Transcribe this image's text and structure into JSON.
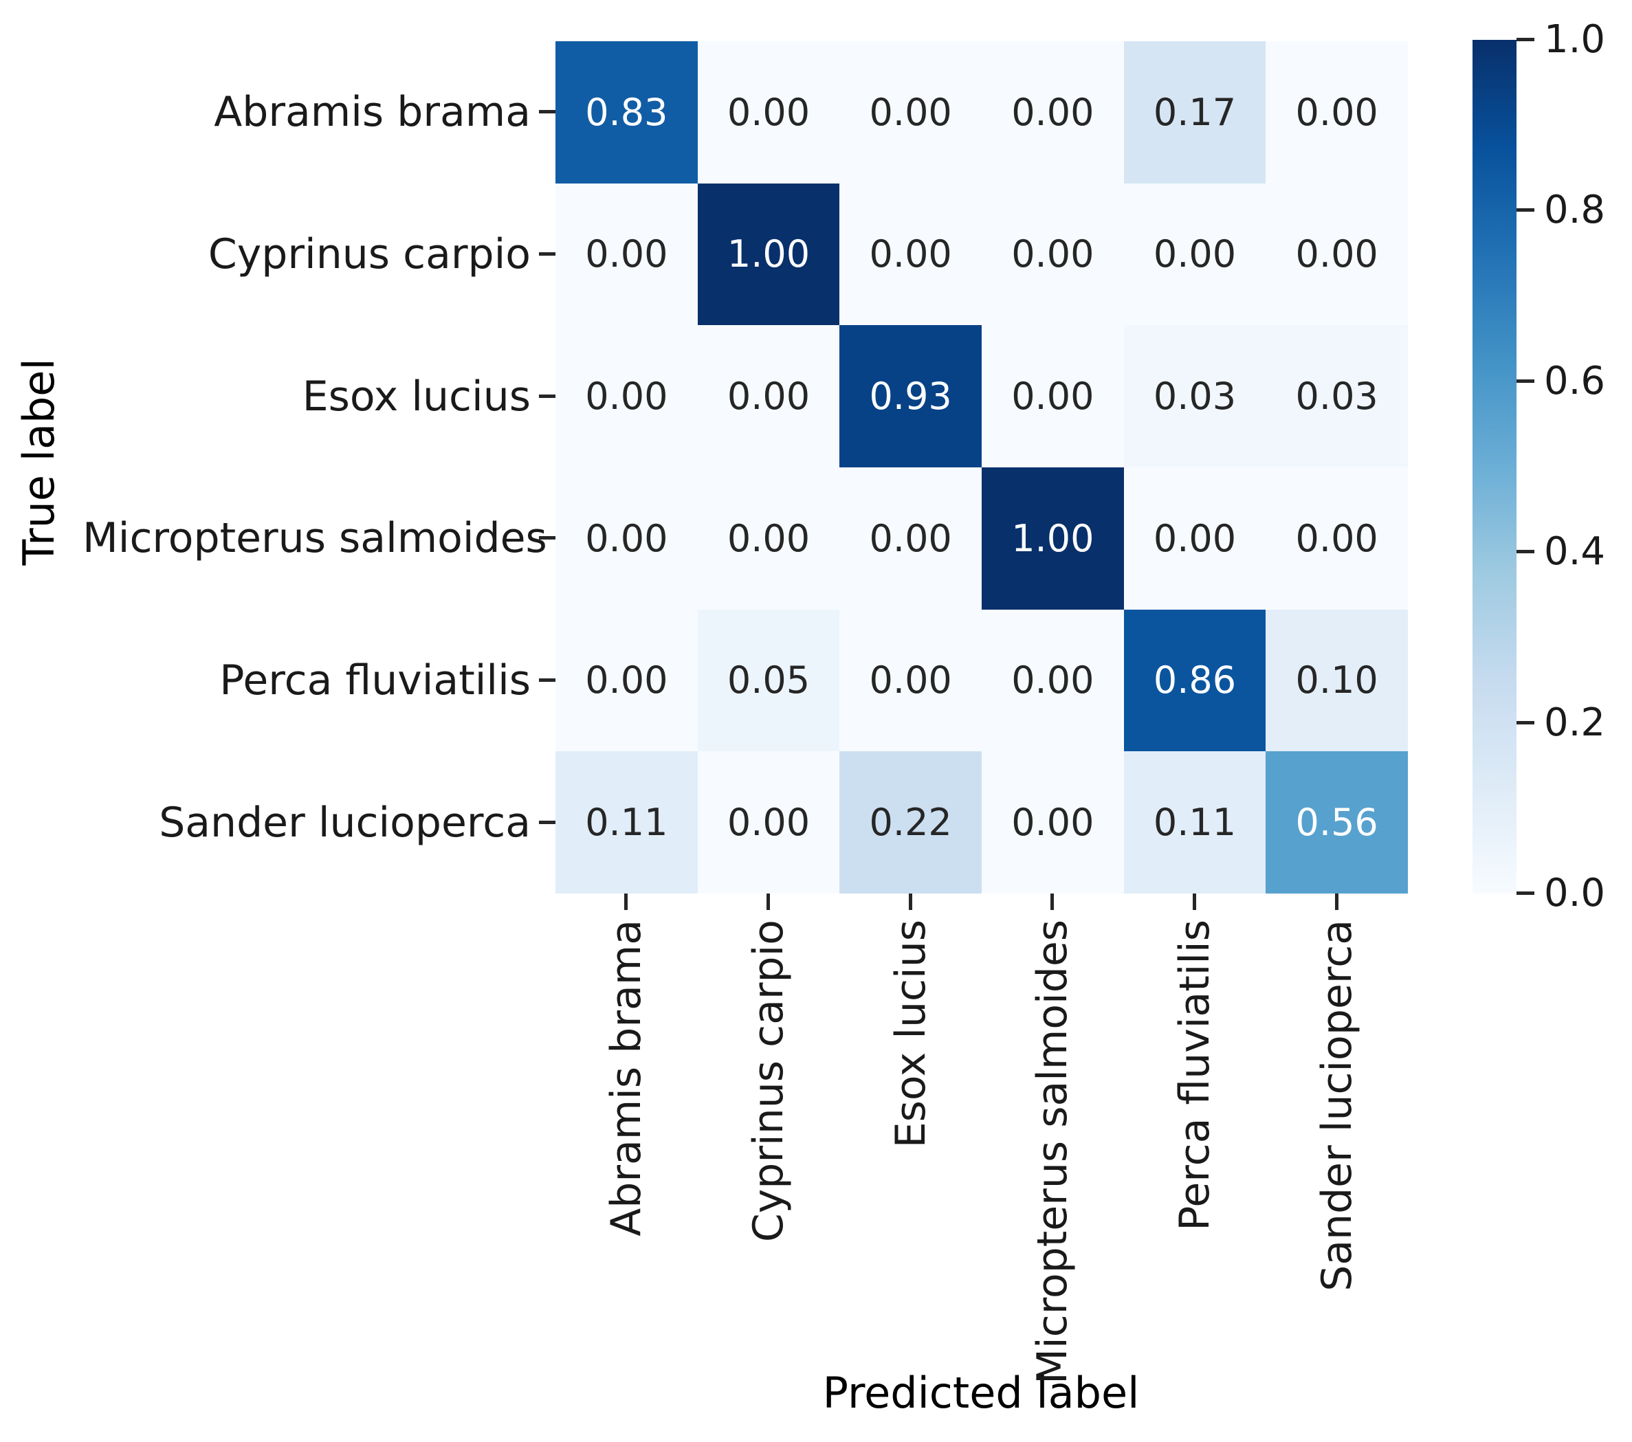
{
  "figure": {
    "background": "#ffffff"
  },
  "chart_data": {
    "type": "heatmap",
    "title": "",
    "xlabel": "Predicted label",
    "ylabel": "True label",
    "x_categories": [
      "Abramis brama",
      "Cyprinus carpio",
      "Esox lucius",
      "Micropterus salmoides",
      "Perca fluviatilis",
      "Sander lucioperca"
    ],
    "y_categories": [
      "Abramis brama",
      "Cyprinus carpio",
      "Esox lucius",
      "Micropterus salmoides",
      "Perca fluviatilis",
      "Sander lucioperca"
    ],
    "matrix": [
      [
        0.83,
        0.0,
        0.0,
        0.0,
        0.17,
        0.0
      ],
      [
        0.0,
        1.0,
        0.0,
        0.0,
        0.0,
        0.0
      ],
      [
        0.0,
        0.0,
        0.93,
        0.0,
        0.03,
        0.03
      ],
      [
        0.0,
        0.0,
        0.0,
        1.0,
        0.0,
        0.0
      ],
      [
        0.0,
        0.05,
        0.0,
        0.0,
        0.86,
        0.1
      ],
      [
        0.11,
        0.0,
        0.22,
        0.0,
        0.11,
        0.56
      ]
    ],
    "cell_labels": [
      [
        "0.83",
        "0.00",
        "0.00",
        "0.00",
        "0.17",
        "0.00"
      ],
      [
        "0.00",
        "1.00",
        "0.00",
        "0.00",
        "0.00",
        "0.00"
      ],
      [
        "0.00",
        "0.00",
        "0.93",
        "0.00",
        "0.03",
        "0.03"
      ],
      [
        "0.00",
        "0.00",
        "0.00",
        "1.00",
        "0.00",
        "0.00"
      ],
      [
        "0.00",
        "0.05",
        "0.00",
        "0.00",
        "0.86",
        "0.10"
      ],
      [
        "0.11",
        "0.00",
        "0.22",
        "0.00",
        "0.11",
        "0.56"
      ]
    ],
    "vmin": 0.0,
    "vmax": 1.0,
    "colormap": "Blues",
    "colormap_stops": [
      "#f7fbff",
      "#deebf7",
      "#c6dbef",
      "#9ecae1",
      "#6baed6",
      "#4292c6",
      "#2171b5",
      "#08519c",
      "#08306b"
    ],
    "colorbar_tick_labels": [
      "1.0",
      "0.8",
      "0.6",
      "0.4",
      "0.2",
      "0.0"
    ],
    "colorbar_position": "right",
    "grid": false,
    "annotation_color_dark": "#262626",
    "annotation_color_light": "#ffffff",
    "tick_color": "#262626",
    "label_color": "#000000"
  }
}
